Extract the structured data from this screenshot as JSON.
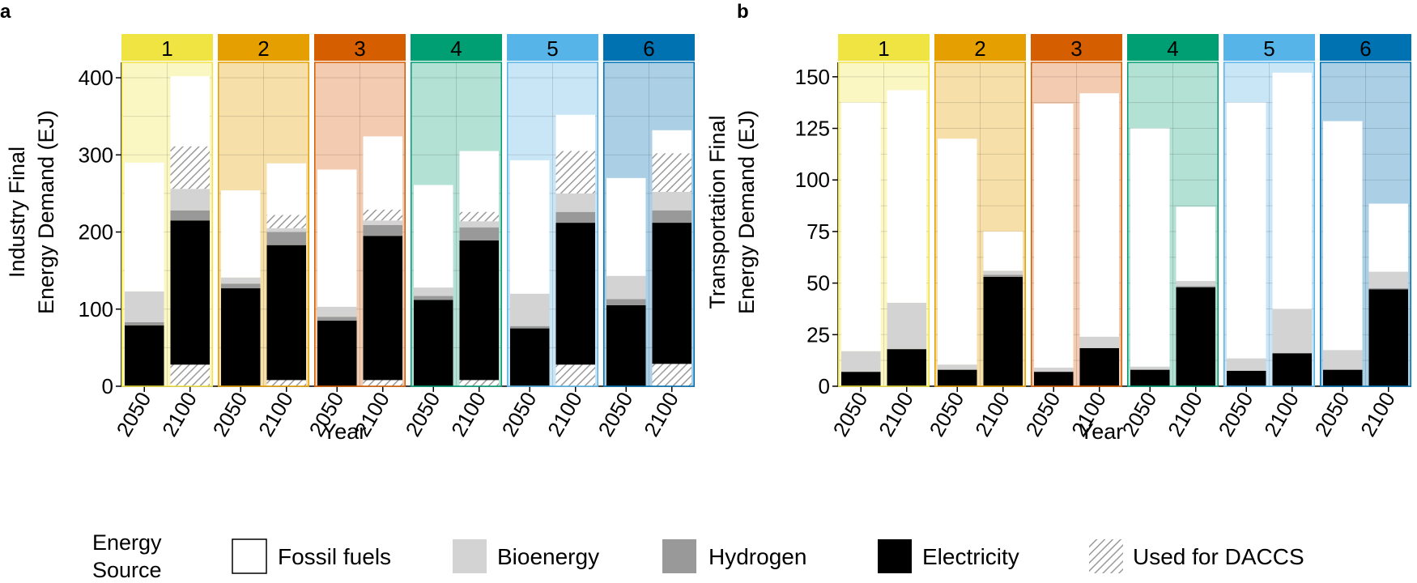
{
  "figure": {
    "legend": {
      "title_line1": "Energy",
      "title_line2": "Source",
      "items": [
        {
          "key": "fossil",
          "label": "Fossil fuels",
          "color": "#ffffff",
          "pattern": "none"
        },
        {
          "key": "bio",
          "label": "Bioenergy",
          "color": "#d3d3d3",
          "pattern": "none"
        },
        {
          "key": "h2",
          "label": "Hydrogen",
          "color": "#999999",
          "pattern": "none"
        },
        {
          "key": "elec",
          "label": "Electricity",
          "color": "#000000",
          "pattern": "none"
        },
        {
          "key": "daccs",
          "label": "Used for DACCS",
          "color": "#ffffff",
          "pattern": "hatch"
        }
      ]
    }
  },
  "chart_data": [
    {
      "panel_label": "a",
      "type": "bar",
      "stacked": true,
      "ylabel_line1": "Industry Final",
      "ylabel_line2": "Energy Demand (EJ)",
      "xlabel": "Year",
      "ylim": [
        0,
        420
      ],
      "yticks": [
        0,
        100,
        200,
        300,
        400
      ],
      "gridlines": [
        0,
        50,
        100,
        150,
        200,
        250,
        300,
        350,
        400
      ],
      "categories": [
        "2050",
        "2100"
      ],
      "facets": [
        {
          "label": "1",
          "color": "#f0e442",
          "bg": "#fbf7c3",
          "bg_top": [
            415,
            415
          ]
        },
        {
          "label": "2",
          "color": "#e69f00",
          "bg": "#f6dfa9",
          "bg_top": [
            420,
            420
          ]
        },
        {
          "label": "3",
          "color": "#d55e00",
          "bg": "#f3cbb0",
          "bg_top": [
            420,
            420
          ]
        },
        {
          "label": "4",
          "color": "#009e73",
          "bg": "#b3e1d3",
          "bg_top": [
            420,
            420
          ]
        },
        {
          "label": "5",
          "color": "#56b4e9",
          "bg": "#c9e6f7",
          "bg_top": [
            420,
            420
          ]
        },
        {
          "label": "6",
          "color": "#0072b2",
          "bg": "#abd0e6",
          "bg_top": [
            420,
            420
          ]
        }
      ],
      "series": [
        {
          "name": "Electricity",
          "key": "elec",
          "values": [
            [
              79,
              215
            ],
            [
              127,
              183
            ],
            [
              85,
              195
            ],
            [
              112,
              189
            ],
            [
              75,
              212
            ],
            [
              105,
              212
            ]
          ]
        },
        {
          "name": "Hydrogen",
          "key": "h2",
          "values": [
            [
              4,
              13
            ],
            [
              6,
              17
            ],
            [
              5,
              14
            ],
            [
              5,
              17
            ],
            [
              3,
              14
            ],
            [
              8,
              16
            ]
          ]
        },
        {
          "name": "Bioenergy",
          "key": "bio",
          "values": [
            [
              40,
              28
            ],
            [
              8,
              5
            ],
            [
              13,
              6
            ],
            [
              11,
              8
            ],
            [
              42,
              24
            ],
            [
              30,
              24
            ]
          ]
        },
        {
          "name": "Fossil fuels",
          "key": "fossil",
          "values": [
            [
              167,
              146
            ],
            [
              113,
              84
            ],
            [
              178,
              109
            ],
            [
              133,
              91
            ],
            [
              173,
              102
            ],
            [
              127,
              80
            ]
          ]
        }
      ],
      "daccs": {
        "name": "Used for DACCS",
        "bottom": [
          [
            0,
            28
          ],
          [
            0,
            8
          ],
          [
            0,
            8
          ],
          [
            0,
            8
          ],
          [
            0,
            28
          ],
          [
            0,
            29
          ]
        ],
        "top": [
          [
            0,
            311
          ],
          [
            0,
            222
          ],
          [
            0,
            229
          ],
          [
            0,
            226
          ],
          [
            0,
            305
          ],
          [
            0,
            302
          ]
        ],
        "lower_band_top": [
          [
            0,
            28
          ],
          [
            0,
            8
          ],
          [
            0,
            8
          ],
          [
            0,
            8
          ],
          [
            0,
            28
          ],
          [
            0,
            29
          ]
        ]
      }
    },
    {
      "panel_label": "b",
      "type": "bar",
      "stacked": true,
      "ylabel_line1": "Transportation Final",
      "ylabel_line2": "Energy Demand (EJ)",
      "xlabel": "Year",
      "ylim": [
        0,
        157
      ],
      "yticks": [
        0,
        25,
        50,
        75,
        100,
        125,
        150
      ],
      "gridlines": [
        0,
        12.5,
        25,
        37.5,
        50,
        62.5,
        75,
        87.5,
        100,
        112.5,
        125,
        137.5,
        150
      ],
      "categories": [
        "2050",
        "2100"
      ],
      "facets": [
        {
          "label": "1",
          "color": "#f0e442",
          "bg": "#fbf7c3",
          "bg_top": [
            150,
            150
          ]
        },
        {
          "label": "2",
          "color": "#e69f00",
          "bg": "#f6dfa9",
          "bg_top": [
            157,
            157
          ]
        },
        {
          "label": "3",
          "color": "#d55e00",
          "bg": "#f3cbb0",
          "bg_top": [
            157,
            157
          ]
        },
        {
          "label": "4",
          "color": "#009e73",
          "bg": "#b3e1d3",
          "bg_top": [
            157,
            157
          ]
        },
        {
          "label": "5",
          "color": "#56b4e9",
          "bg": "#c9e6f7",
          "bg_top": [
            152,
            152
          ]
        },
        {
          "label": "6",
          "color": "#0072b2",
          "bg": "#abd0e6",
          "bg_top": [
            157,
            157
          ]
        }
      ],
      "series": [
        {
          "name": "Electricity",
          "key": "elec",
          "values": [
            [
              7,
              18
            ],
            [
              8,
              53
            ],
            [
              7,
              18.5
            ],
            [
              8,
              48
            ],
            [
              7.5,
              16
            ],
            [
              8,
              47
            ]
          ]
        },
        {
          "name": "Hydrogen",
          "key": "h2",
          "values": [
            [
              0,
              0
            ],
            [
              0,
              1
            ],
            [
              0,
              0
            ],
            [
              0,
              0.5
            ],
            [
              0,
              0
            ],
            [
              0,
              0.5
            ]
          ]
        },
        {
          "name": "Bioenergy",
          "key": "bio",
          "values": [
            [
              10,
              22.5
            ],
            [
              2.5,
              2
            ],
            [
              2,
              5.5
            ],
            [
              1.5,
              2.5
            ],
            [
              6,
              21.5
            ],
            [
              9.5,
              8
            ]
          ]
        },
        {
          "name": "Fossil fuels",
          "key": "fossil",
          "values": [
            [
              120.5,
              103
            ],
            [
              109.5,
              19
            ],
            [
              128,
              118
            ],
            [
              115.5,
              36
            ],
            [
              124,
              114.5
            ],
            [
              111,
              33
            ]
          ]
        }
      ]
    }
  ]
}
